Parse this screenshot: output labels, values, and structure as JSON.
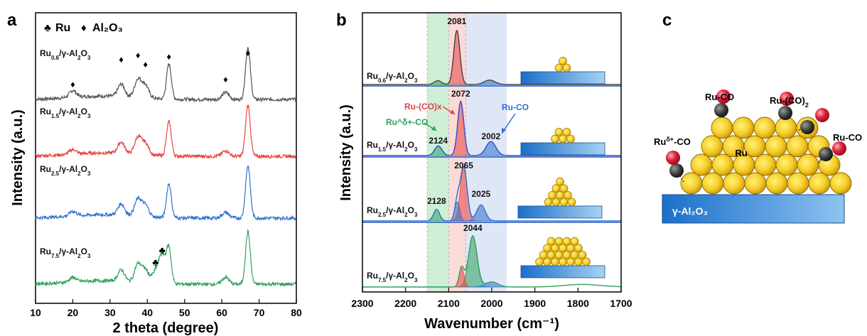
{
  "figure": {
    "panel_a_letter": "a",
    "panel_b_letter": "b",
    "panel_c_letter": "c",
    "legend_ru": "Ru",
    "legend_al2o3": "Al₂O₃",
    "colors": {
      "gray": "#555555",
      "red": "#e8423f",
      "blue": "#2f6fd0",
      "green": "#2ea05e"
    }
  },
  "chart_data": [
    {
      "type": "line",
      "panel": "a",
      "xlabel": "2 theta (degree)",
      "ylabel": "Intensity (a.u.)",
      "xlim": [
        10,
        80
      ],
      "x_ticks": [
        "10",
        "20",
        "30",
        "40",
        "50",
        "60",
        "70",
        "80"
      ],
      "series": [
        {
          "name": "Ru0.6/γ-Al2O3",
          "label_base": "Ru",
          "label_sub": "0.6",
          "label_tail": "/γ-Al",
          "label_sub2": "2",
          "label_o": "O",
          "label_sub3": "3",
          "color": "#555555",
          "peaks": [
            [
              20,
              0.12
            ],
            [
              33,
              0.22
            ],
            [
              37.5,
              0.32
            ],
            [
              39.5,
              0.22
            ],
            [
              45.8,
              0.62
            ],
            [
              61,
              0.12
            ],
            [
              67,
              0.92
            ]
          ]
        },
        {
          "name": "Ru1.5/γ-Al2O3",
          "label_base": "Ru",
          "label_sub": "1.5",
          "label_tail": "/γ-Al",
          "label_sub2": "2",
          "label_o": "O",
          "label_sub3": "3",
          "color": "#e8423f",
          "peaks": [
            [
              20,
              0.08
            ],
            [
              33,
              0.2
            ],
            [
              37.5,
              0.3
            ],
            [
              39.5,
              0.2
            ],
            [
              45.8,
              0.6
            ],
            [
              61,
              0.1
            ],
            [
              67,
              0.9
            ]
          ]
        },
        {
          "name": "Ru2.5/γ-Al2O3",
          "label_base": "Ru",
          "label_sub": "2.5",
          "label_tail": "/γ-Al",
          "label_sub2": "2",
          "label_o": "O",
          "label_sub3": "3",
          "color": "#2f6fd0",
          "peaks": [
            [
              20,
              0.08
            ],
            [
              33,
              0.2
            ],
            [
              37.5,
              0.3
            ],
            [
              39.5,
              0.2
            ],
            [
              45.8,
              0.6
            ],
            [
              61,
              0.1
            ],
            [
              67,
              0.92
            ]
          ]
        },
        {
          "name": "Ru7.5/γ-Al2O3",
          "label_base": "Ru",
          "label_sub": "7.5",
          "label_tail": "/γ-Al",
          "label_sub2": "2",
          "label_o": "O",
          "label_sub3": "3",
          "color": "#2ea05e",
          "peaks": [
            [
              20,
              0.08
            ],
            [
              33,
              0.2
            ],
            [
              37.5,
              0.32
            ],
            [
              39.5,
              0.22
            ],
            [
              42.2,
              0.18
            ],
            [
              44,
              0.5
            ],
            [
              45.8,
              0.6
            ],
            [
              61,
              0.12
            ],
            [
              67,
              0.92
            ]
          ]
        }
      ],
      "markers": {
        "al2o3_diamonds": [
          20,
          33,
          37.5,
          39.5,
          45.8,
          61,
          67
        ],
        "ru_clubs": [
          42.2,
          44
        ]
      }
    },
    {
      "type": "area",
      "panel": "b",
      "xlabel": "Wavenumber (cm⁻¹)",
      "ylabel": "Intensity (a.u.)",
      "xlim": [
        2300,
        1700
      ],
      "x_ticks": [
        "2300",
        "2200",
        "2100",
        "2000",
        "1900",
        "1800",
        "1700"
      ],
      "bands": {
        "green": [
          2150,
          2100
        ],
        "red": [
          2100,
          2060
        ],
        "blue": [
          2060,
          1965
        ]
      },
      "annotations": {
        "ru_cox": "Ru-(CO)x",
        "ru_delta_co": "Ru^δ+-CO",
        "ru_co": "Ru-CO"
      },
      "series": [
        {
          "name": "Ru0.6/γ-Al2O3",
          "label_base": "Ru",
          "label_sub": "0.6",
          "label_tail": "/γ-Al",
          "label_sub2": "2",
          "label_o": "O",
          "label_sub3": "3",
          "peak_labels": [
            "2081"
          ],
          "components": [
            {
              "center": 2081,
              "height": 0.85,
              "width": 10,
              "color": "#e8423f"
            },
            {
              "center": 2125,
              "height": 0.06,
              "width": 12,
              "color": "#2ea05e"
            },
            {
              "center": 2005,
              "height": 0.07,
              "width": 18,
              "color": "#2f6fd0"
            }
          ]
        },
        {
          "name": "Ru1.5/γ-Al2O3",
          "label_base": "Ru",
          "label_sub": "1.5",
          "label_tail": "/γ-Al",
          "label_sub2": "2",
          "label_o": "O",
          "label_sub3": "3",
          "peak_labels": [
            "2072",
            "2124",
            "2002"
          ],
          "components": [
            {
              "center": 2072,
              "height": 0.85,
              "width": 10,
              "color": "#e8423f"
            },
            {
              "center": 2124,
              "height": 0.15,
              "width": 12,
              "color": "#2ea05e"
            },
            {
              "center": 2002,
              "height": 0.22,
              "width": 16,
              "color": "#2f6fd0"
            }
          ]
        },
        {
          "name": "Ru2.5/γ-Al2O3",
          "label_base": "Ru",
          "label_sub": "2.5",
          "label_tail": "/γ-Al",
          "label_sub2": "2",
          "label_o": "O",
          "label_sub3": "3",
          "peak_labels": [
            "2065",
            "2128",
            "2025"
          ],
          "components": [
            {
              "center": 2065,
              "height": 0.85,
              "width": 11,
              "color": "#e8423f"
            },
            {
              "center": 2128,
              "height": 0.18,
              "width": 10,
              "color": "#2ea05e"
            },
            {
              "center": 2025,
              "height": 0.25,
              "width": 14,
              "color": "#2f6fd0"
            },
            {
              "center": 2080,
              "height": 0.3,
              "width": 8,
              "color": "#2f6fd0"
            }
          ]
        },
        {
          "name": "Ru7.5/γ-Al2O3",
          "label_base": "Ru",
          "label_sub": "7.5",
          "label_tail": "/γ-Al",
          "label_sub2": "2",
          "label_o": "O",
          "label_sub3": "3",
          "peak_labels": [
            "2044"
          ],
          "components": [
            {
              "center": 2044,
              "height": 0.8,
              "width": 14,
              "color": "#2ea05e"
            },
            {
              "center": 2070,
              "height": 0.3,
              "width": 8,
              "color": "#e8423f"
            },
            {
              "center": 2000,
              "height": 0.08,
              "width": 20,
              "color": "#2f6fd0"
            }
          ]
        }
      ]
    }
  ],
  "schematic": {
    "support_label": "γ-Al₂O₃",
    "ru_label": "Ru",
    "ru_co": "Ru-CO",
    "ru_co2": "Ru-(CO)",
    "ru_co2_sub": "2",
    "ru_delta": "Ru",
    "ru_delta_sup": "δ+",
    "ru_delta_tail": "-CO",
    "ru_co_right": "Ru-CO"
  }
}
